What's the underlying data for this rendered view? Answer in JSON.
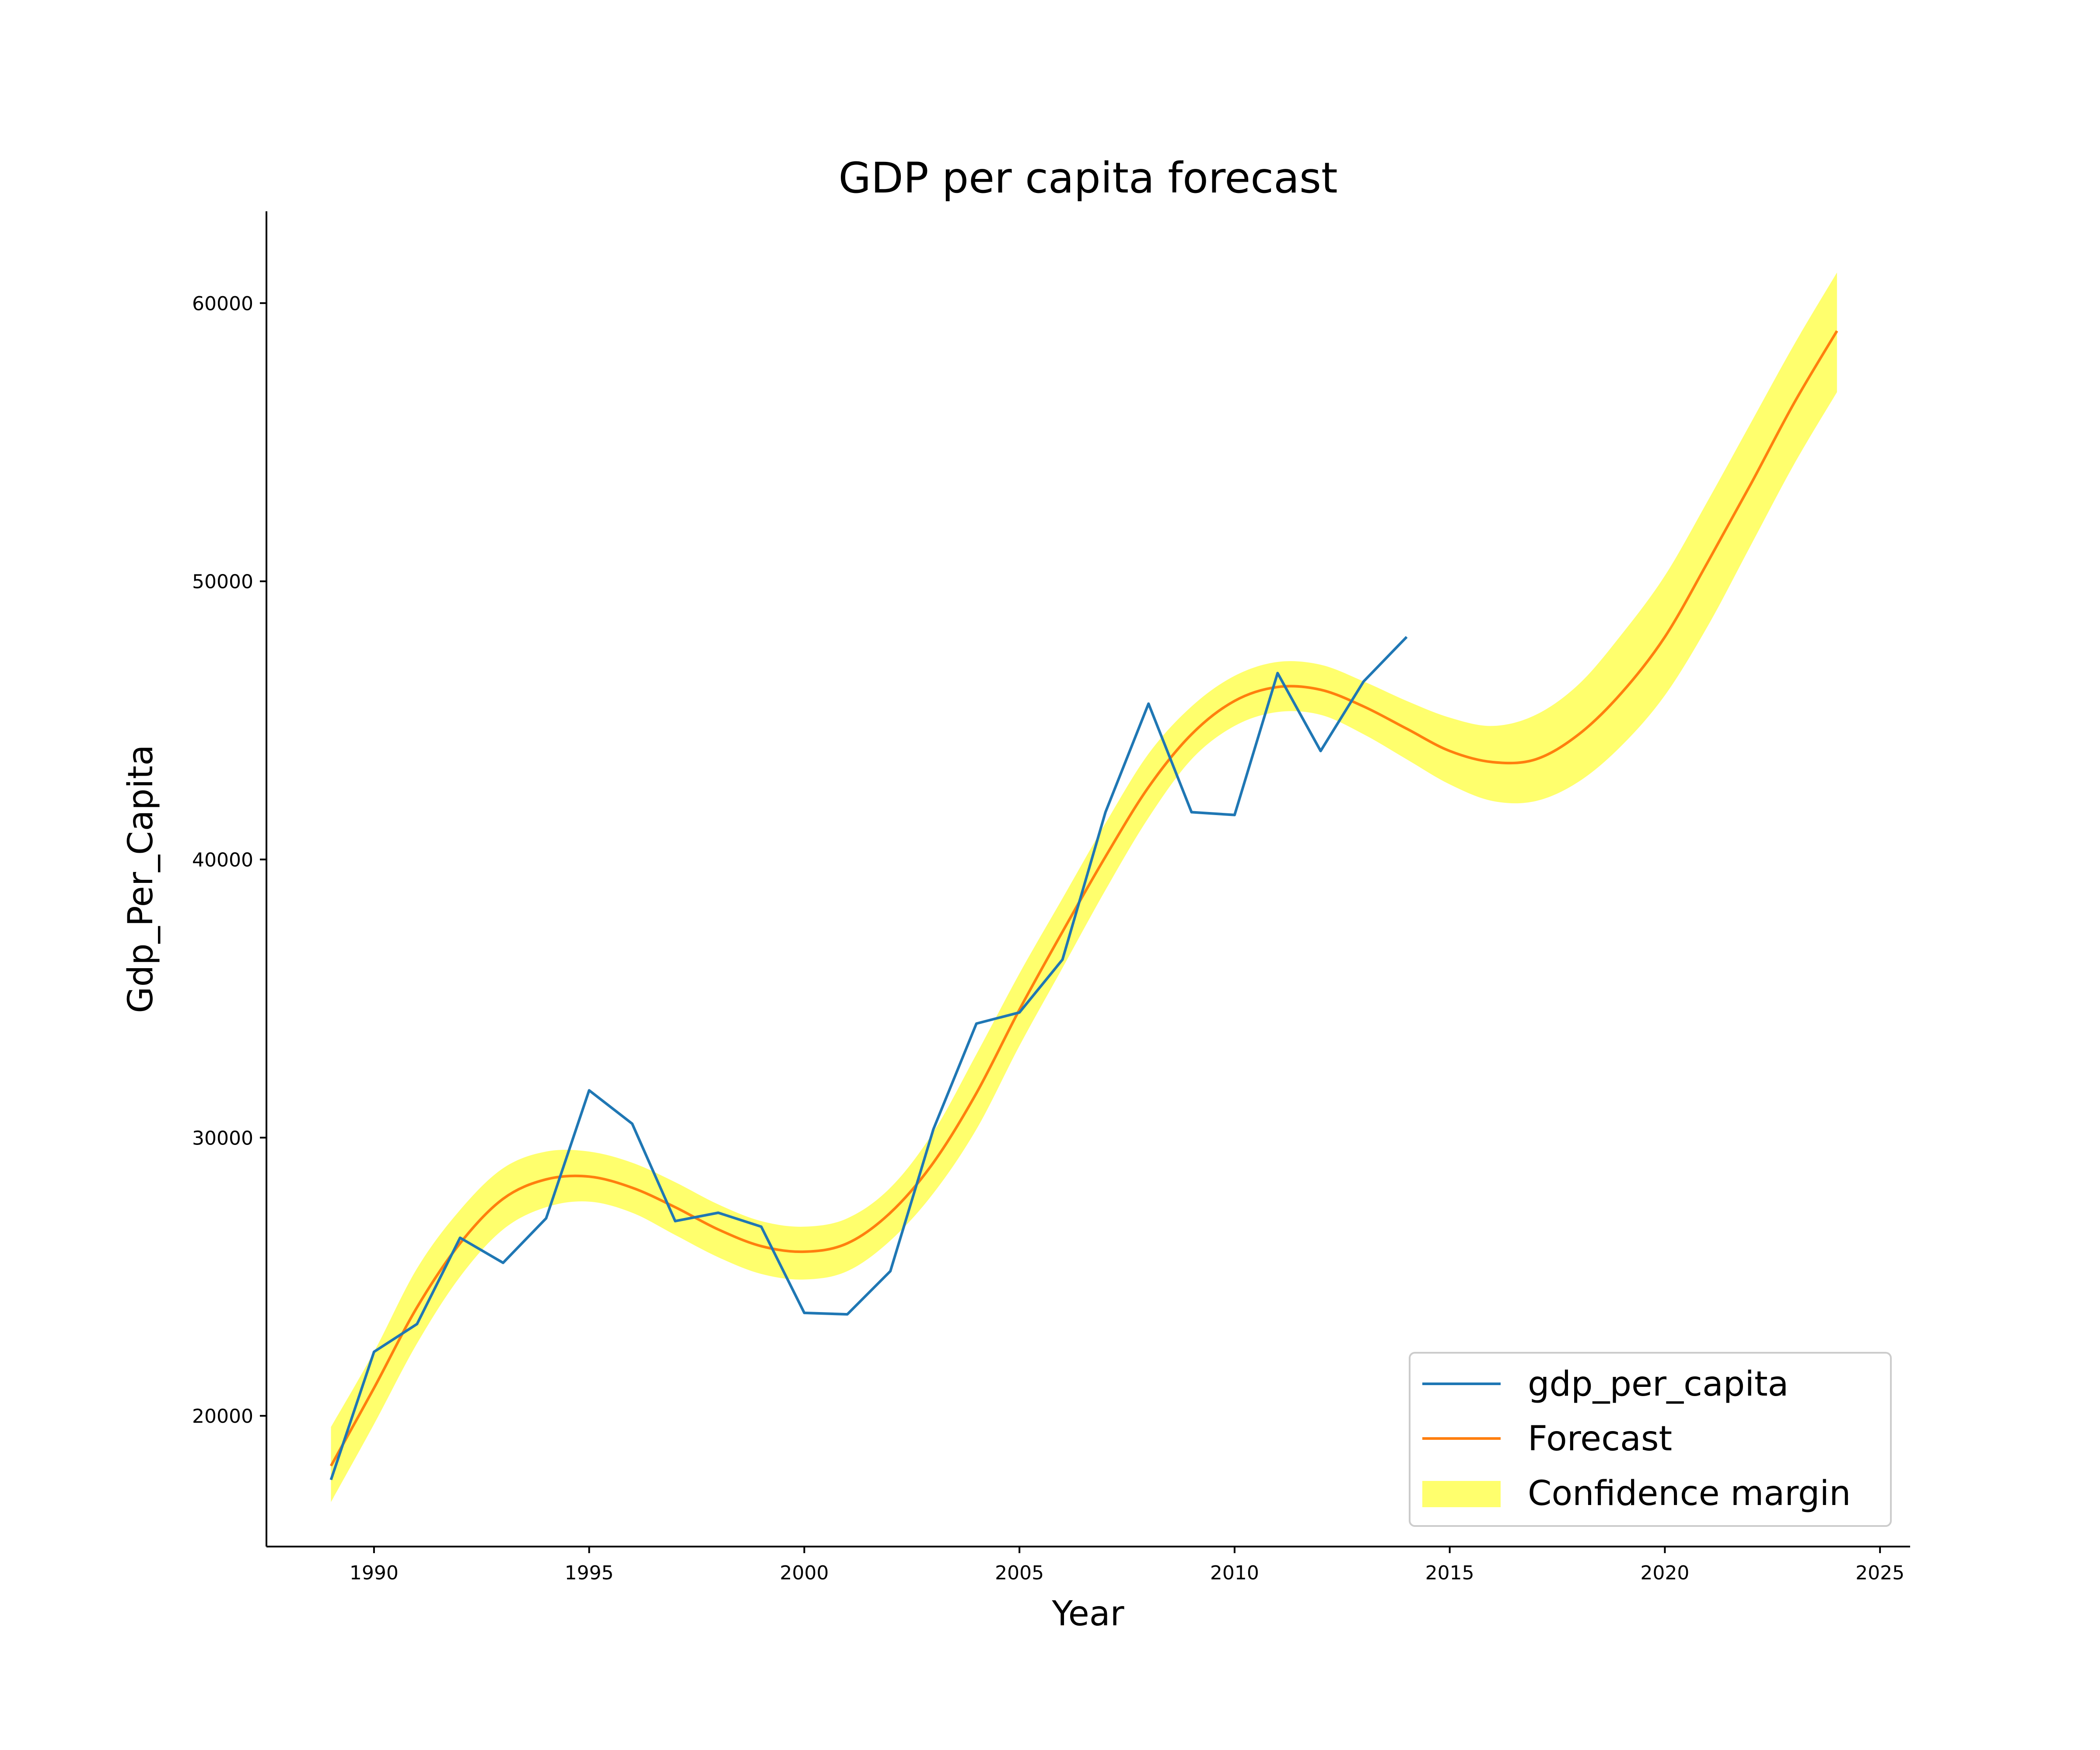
{
  "chart_data": {
    "type": "line",
    "title": "GDP per capita forecast",
    "xlabel": "Year",
    "ylabel": "Gdp_Per_Capita",
    "xlim": [
      1987.5,
      2025.7
    ],
    "ylim": [
      15300,
      63300
    ],
    "x_ticks": [
      "1990",
      "1995",
      "2000",
      "2005",
      "2010",
      "2015",
      "2020",
      "2025"
    ],
    "x_tick_values": [
      1990,
      1995,
      2000,
      2005,
      2010,
      2015,
      2020,
      2025
    ],
    "y_ticks": [
      "20000",
      "30000",
      "40000",
      "50000",
      "60000"
    ],
    "y_tick_values": [
      20000,
      30000,
      40000,
      50000,
      60000
    ],
    "grid": false,
    "legend_position": "lower-right",
    "colors": {
      "gdp_per_capita": "#1f77b4",
      "forecast": "#ff7f0e",
      "confidence": "#ffff3c"
    },
    "series": [
      {
        "name": "gdp_per_capita",
        "type": "line",
        "x": [
          1989,
          1990,
          1991,
          1992,
          1993,
          1994,
          1995,
          1996,
          1997,
          1998,
          1999,
          2000,
          2001,
          2002,
          2003,
          2004,
          2005,
          2006,
          2007,
          2008,
          2009,
          2010,
          2011,
          2012,
          2013,
          2014
        ],
        "y": [
          17700,
          22300,
          23300,
          26400,
          25500,
          27100,
          31700,
          30500,
          27000,
          27300,
          26800,
          23700,
          23650,
          25200,
          30300,
          34100,
          34500,
          36400,
          41700,
          45600,
          41700,
          41600,
          46700,
          43900,
          46400,
          48000
        ]
      },
      {
        "name": "Forecast",
        "type": "line",
        "x": [
          1989,
          1990,
          1991,
          1992,
          1993,
          1994,
          1995,
          1996,
          1997,
          1998,
          1999,
          2000,
          2001,
          2002,
          2003,
          2004,
          2005,
          2006,
          2007,
          2008,
          2009,
          2010,
          2011,
          2012,
          2013,
          2014,
          2015,
          2016,
          2017,
          2018,
          2019,
          2020,
          2021,
          2022,
          2023,
          2024
        ],
        "y": [
          18200,
          21000,
          23900,
          26200,
          27800,
          28500,
          28600,
          28200,
          27500,
          26700,
          26100,
          25900,
          26200,
          27300,
          29100,
          31600,
          34600,
          37400,
          40100,
          42600,
          44500,
          45700,
          46200,
          46100,
          45500,
          44700,
          43900,
          43500,
          43600,
          44500,
          46000,
          48000,
          50700,
          53500,
          56400,
          59000
        ]
      },
      {
        "name": "Confidence margin",
        "type": "area",
        "x": [
          1989,
          1990,
          1991,
          1992,
          1993,
          1994,
          1995,
          1996,
          1997,
          1998,
          1999,
          2000,
          2001,
          2002,
          2003,
          2004,
          2005,
          2006,
          2007,
          2008,
          2009,
          2010,
          2011,
          2012,
          2013,
          2014,
          2015,
          2016,
          2017,
          2018,
          2019,
          2020,
          2021,
          2022,
          2023,
          2024
        ],
        "lower": [
          16900,
          19700,
          22600,
          25000,
          26700,
          27500,
          27700,
          27300,
          26500,
          25700,
          25100,
          24900,
          25200,
          26300,
          28000,
          30300,
          33300,
          36100,
          38900,
          41500,
          43600,
          44800,
          45300,
          45200,
          44500,
          43600,
          42700,
          42100,
          42100,
          42800,
          44100,
          45900,
          48400,
          51300,
          54200,
          56800
        ],
        "upper": [
          19600,
          22300,
          25300,
          27400,
          28900,
          29500,
          29500,
          29100,
          28400,
          27600,
          27000,
          26800,
          27100,
          28200,
          30200,
          33000,
          35900,
          38600,
          41300,
          43800,
          45500,
          46600,
          47100,
          47000,
          46400,
          45700,
          45100,
          44800,
          45200,
          46300,
          48100,
          50200,
          52900,
          55700,
          58500,
          61100
        ]
      }
    ]
  }
}
